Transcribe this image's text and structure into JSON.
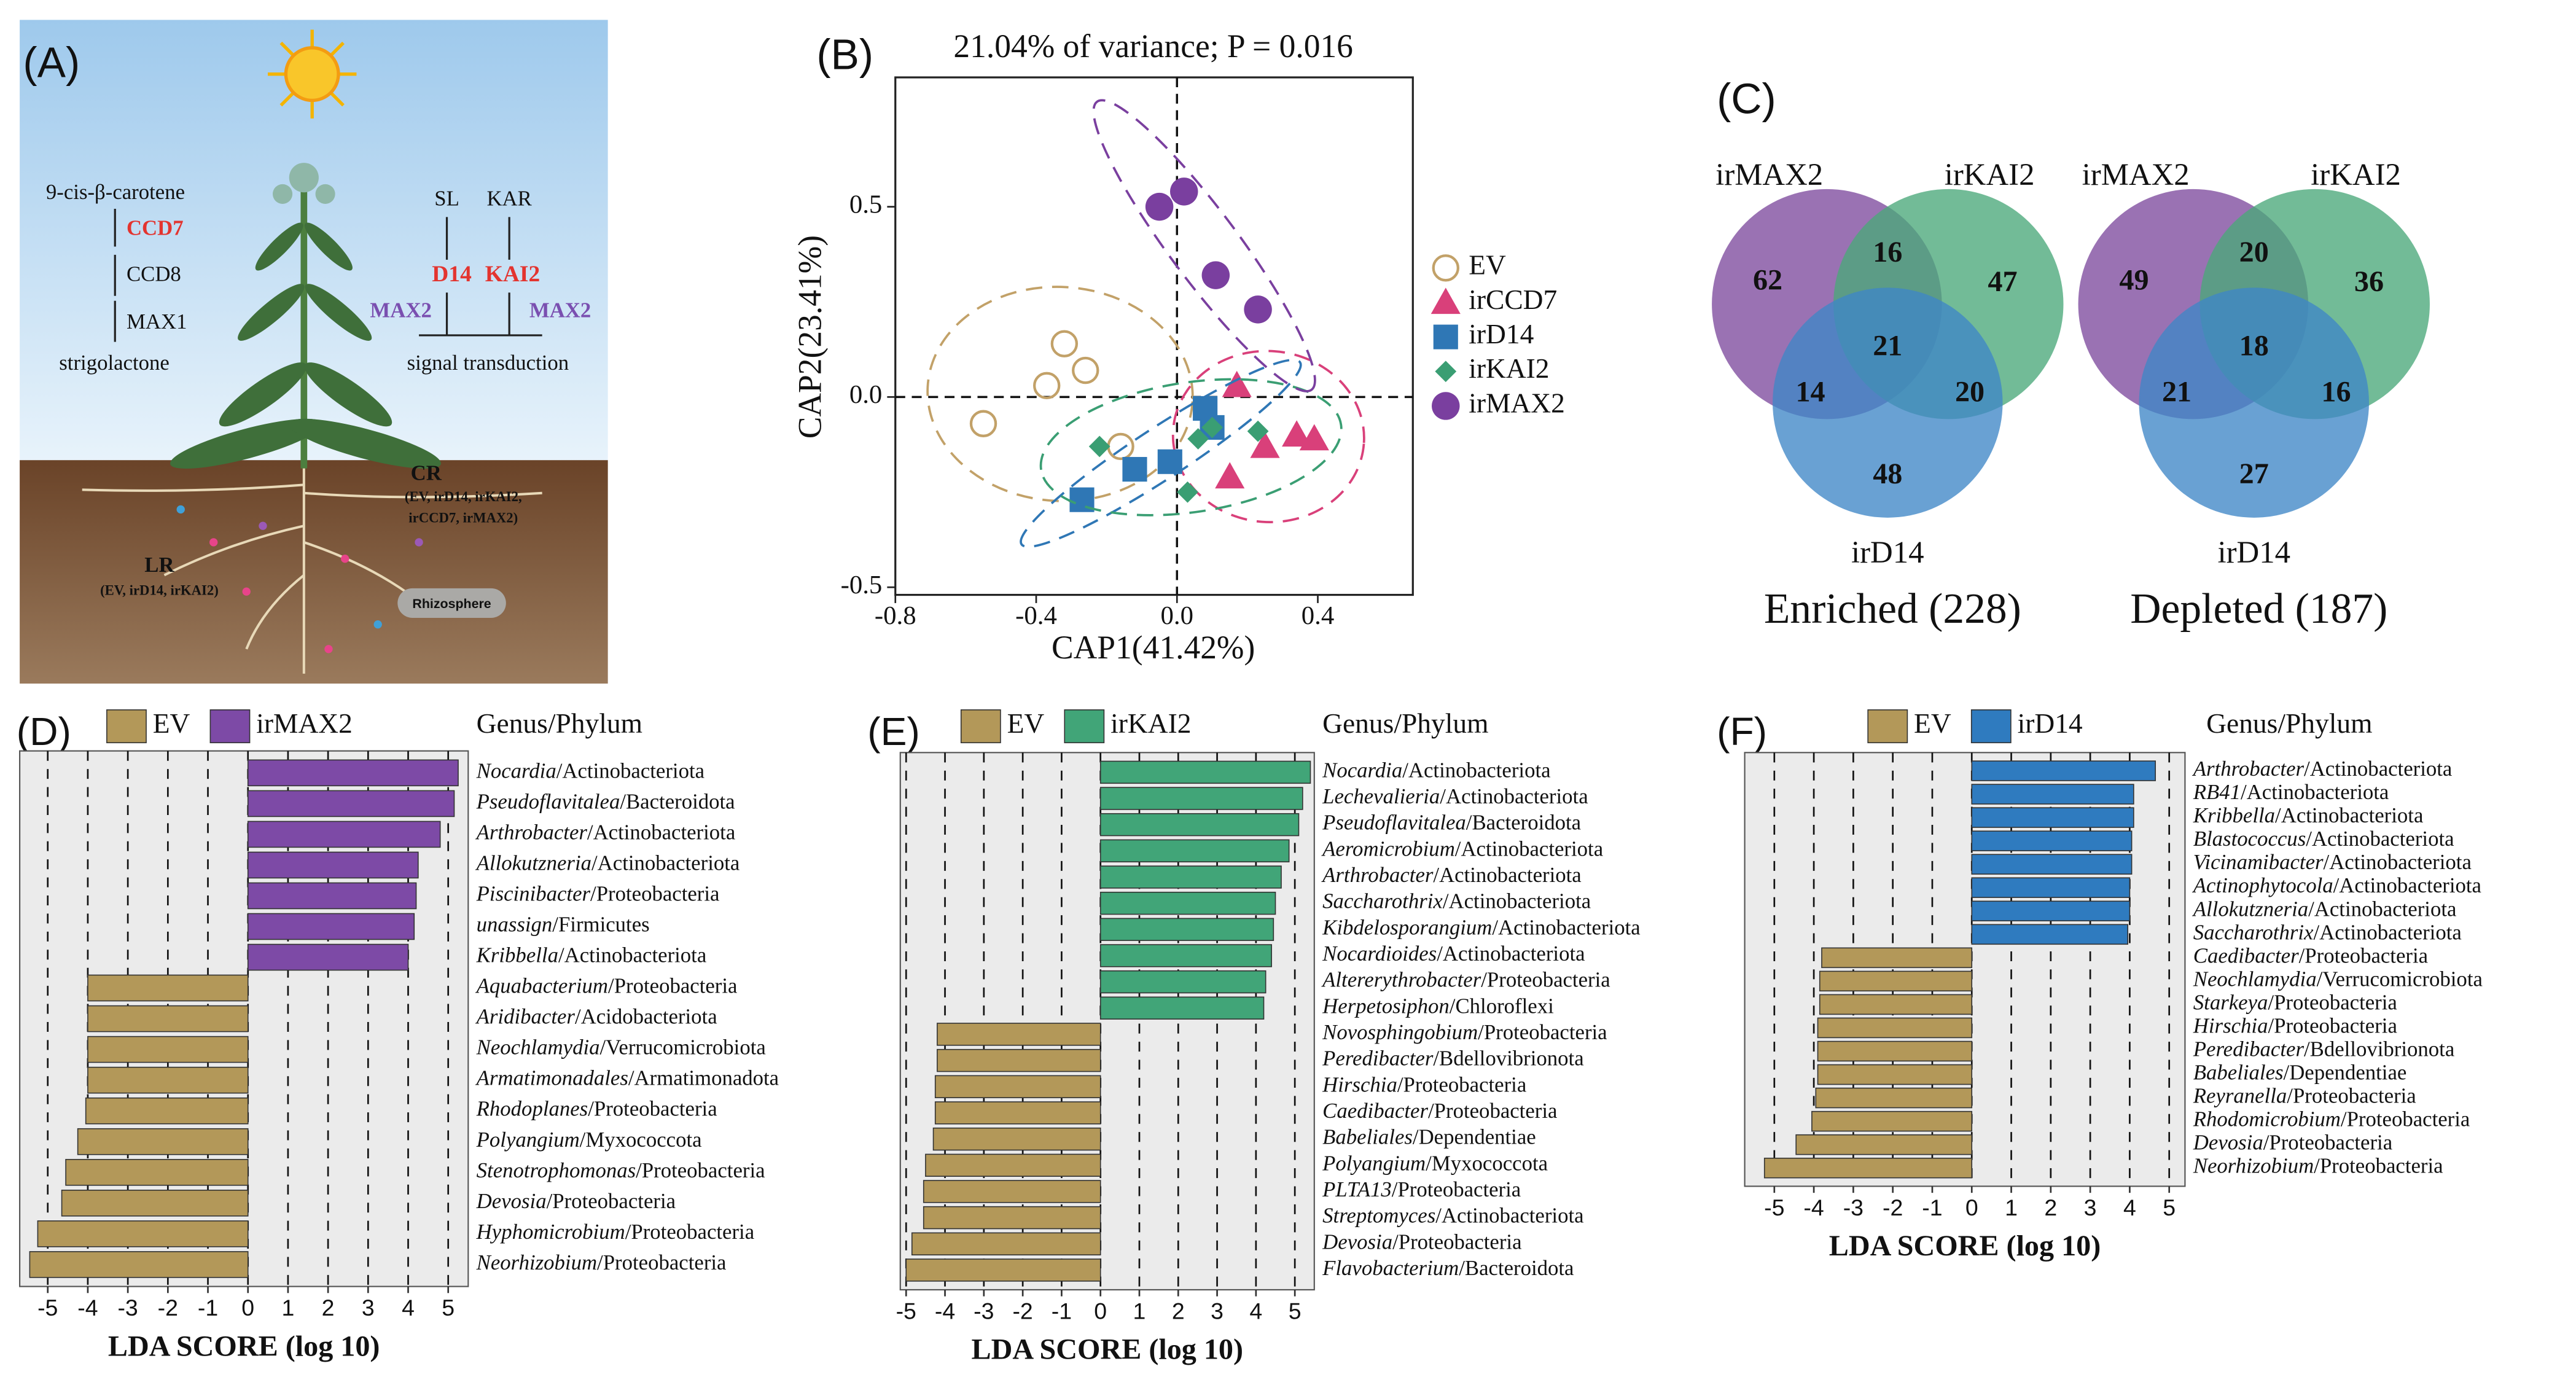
{
  "panel_a": {
    "label": "(A)",
    "pathway": [
      "9-cis-β-carotene",
      "CCD7",
      "CCD8",
      "MAX1",
      "strigolactone"
    ],
    "signals": [
      "SL",
      "KAR"
    ],
    "receptors": [
      "D14",
      "KAI2"
    ],
    "max2": [
      "MAX2",
      "MAX2"
    ],
    "signal": "signal transduction",
    "cr": "CR",
    "cr_genotypes": [
      "(EV, irD14, irKAI2,",
      "irCCD7, irMAX2)"
    ],
    "lr": "LR",
    "lr_genotypes": "(EV, irD14, irKAI2)",
    "rhizosphere": "Rhizosphere"
  },
  "chart_data": [
    {
      "type": "scatter",
      "label": "(B)",
      "title": "21.04% of variance; P = 0.016",
      "xlabel": "CAP1(41.42%)",
      "ylabel": "CAP2(23.41%)",
      "xlim": [
        -0.8,
        0.67
      ],
      "ylim": [
        -0.52,
        0.84
      ],
      "xticks": [
        -0.8,
        -0.4,
        {
          "value": 0,
          "label": "0.0"
        },
        0.4
      ],
      "yticks": [
        {
          "value": -0.5,
          "label": "-0.5"
        },
        {
          "value": 0,
          "label": "0.0"
        },
        0.5
      ],
      "series": [
        {
          "name": "EV",
          "color": "#c2a168",
          "marker": "circle-open",
          "x": [
            -0.55,
            -0.37,
            -0.32,
            -0.26,
            -0.16
          ],
          "y": [
            -0.07,
            0.03,
            0.14,
            0.07,
            -0.13
          ]
        },
        {
          "name": "irCCD7",
          "color": "#d9407a",
          "marker": "triangle",
          "x": [
            0.17,
            0.15,
            0.25,
            0.34,
            0.39
          ],
          "y": [
            0.03,
            -0.21,
            -0.13,
            -0.1,
            -0.11
          ]
        },
        {
          "name": "irD14",
          "color": "#2f77b5",
          "marker": "square",
          "x": [
            -0.27,
            -0.12,
            -0.02,
            0.08,
            0.1
          ],
          "y": [
            -0.27,
            -0.19,
            -0.17,
            -0.03,
            -0.08
          ]
        },
        {
          "name": "irKAI2",
          "color": "#3a9e73",
          "marker": "diamond",
          "x": [
            -0.22,
            0.06,
            0.1,
            0.23,
            0.03
          ],
          "y": [
            -0.13,
            -0.11,
            -0.08,
            -0.09,
            -0.25
          ]
        },
        {
          "name": "irMAX2",
          "color": "#7a3f9f",
          "marker": "circle",
          "x": [
            -0.05,
            0.02,
            0.11,
            0.23
          ],
          "y": [
            0.5,
            0.54,
            0.32,
            0.23
          ]
        }
      ]
    },
    {
      "type": "venn",
      "label": "(C)",
      "sets": [
        "irMAX2",
        "irKAI2",
        "irD14"
      ],
      "colors": [
        "#7e4a9e",
        "#4aa87a",
        "#3f86c6"
      ],
      "diagrams": [
        {
          "title": "Enriched (228)",
          "regions": [
            62,
            16,
            47,
            21,
            14,
            20,
            48
          ]
        },
        {
          "title": "Depleted (187)",
          "regions": [
            49,
            20,
            36,
            18,
            21,
            16,
            27
          ]
        }
      ]
    },
    {
      "type": "bar",
      "orientation": "horizontal",
      "label": "(D)",
      "header": "Genus/Phylum",
      "xlabel": "LDA SCORE (log 10)",
      "xlim": [
        -5.7,
        5.5
      ],
      "xticks": [
        -5,
        -4,
        -3,
        -2,
        -1,
        0,
        1,
        2,
        3,
        4,
        5
      ],
      "grid": true,
      "categories": [
        "Nocardia/Actinobacteriota",
        "Pseudoflavitalea/Bacteroidota",
        "Arthrobacter/Actinobacteriota",
        "Allokutzneria/Actinobacteriota",
        "Piscinibacter/Proteobacteria",
        "unassign/Firmicutes",
        "Kribbella/Actinobacteriota",
        "Aquabacterium/Proteobacteria",
        "Aridibacter/Acidobacteriota",
        "Neochlamydia/Verrucomicrobiota",
        "Armatimonadales/Armatimonadota",
        "Rhodoplanes/Proteobacteria",
        "Polyangium/Myxococcota",
        "Stenotrophomonas/Proteobacteria",
        "Devosia/Proteobacteria",
        "Hyphomicrobium/Proteobacteria",
        "Neorhizobium/Proteobacteria"
      ],
      "series": [
        {
          "name": "EV",
          "color": "#b39859",
          "values": [
            null,
            null,
            null,
            null,
            null,
            null,
            null,
            -4.0,
            -4.0,
            -4.0,
            -4.0,
            -4.05,
            -4.25,
            -4.55,
            -4.65,
            -5.25,
            -5.45
          ]
        },
        {
          "name": "irMAX2",
          "color": "#7d4aa6",
          "values": [
            5.25,
            5.15,
            4.8,
            4.25,
            4.2,
            4.15,
            4.0,
            null,
            null,
            null,
            null,
            null,
            null,
            null,
            null,
            null,
            null
          ]
        }
      ]
    },
    {
      "type": "bar",
      "orientation": "horizontal",
      "label": "(E)",
      "header": "Genus/Phylum",
      "xlabel": "LDA SCORE (log 10)",
      "xlim": [
        -5.15,
        5.5
      ],
      "xticks": [
        -5,
        -4,
        -3,
        -2,
        -1,
        0,
        1,
        2,
        3,
        4,
        5
      ],
      "grid": true,
      "categories": [
        "Nocardia/Actinobacteriota",
        "Lechevalieria/Actinobacteriota",
        "Pseudoflavitalea/Bacteroidota",
        "Aeromicrobium/Actinobacteriota",
        "Arthrobacter/Actinobacteriota",
        "Saccharothrix/Actinobacteriota",
        "Kibdelosporangium/Actinobacteriota",
        "Nocardioides/Actinobacteriota",
        "Altererythrobacter/Proteobacteria",
        "Herpetosiphon/Chloroflexi",
        "Novosphingobium/Proteobacteria",
        "Peredibacter/Bdellovibrionota",
        "Hirschia/Proteobacteria",
        "Caedibacter/Proteobacteria",
        "Babeliales/Dependentiae",
        "Polyangium/Myxococcota",
        "PLTA13/Proteobacteria",
        "Streptomyces/Actinobacteriota",
        "Devosia/Proteobacteria",
        "Flavobacterium/Bacteroidota"
      ],
      "series": [
        {
          "name": "EV",
          "color": "#b39859",
          "values": [
            null,
            null,
            null,
            null,
            null,
            null,
            null,
            null,
            null,
            null,
            -4.2,
            -4.2,
            -4.25,
            -4.25,
            -4.3,
            -4.5,
            -4.55,
            -4.55,
            -4.85,
            -5.0
          ]
        },
        {
          "name": "irKAI2",
          "color": "#41a578",
          "values": [
            5.4,
            5.2,
            5.1,
            4.85,
            4.65,
            4.5,
            4.45,
            4.4,
            4.25,
            4.2,
            null,
            null,
            null,
            null,
            null,
            null,
            null,
            null,
            null,
            null
          ]
        }
      ]
    },
    {
      "type": "bar",
      "orientation": "horizontal",
      "label": "(F)",
      "header": "Genus/Phylum",
      "xlabel": "LDA SCORE (log 10)",
      "xlim": [
        -5.75,
        5.4
      ],
      "xticks": [
        -5,
        -4,
        -3,
        -2,
        -1,
        0,
        1,
        2,
        3,
        4,
        5
      ],
      "grid": true,
      "categories": [
        "Arthrobacter/Actinobacteriota",
        "RB41/Actinobacteriota",
        "Kribbella/Actinobacteriota",
        "Blastococcus/Actinobacteriota",
        "Vicinamibacter/Actinobacteriota",
        "Actinophytocola/Actinobacteriota",
        "Allokutzneria/Actinobacteriota",
        "Saccharothrix/Actinobacteriota",
        "Caedibacter/Proteobacteria",
        "Neochlamydia/Verrucomicrobiota",
        "Starkeya/Proteobacteria",
        "Hirschia/Proteobacteria",
        "Peredibacter/Bdellovibrionota",
        "Babeliales/Dependentiae",
        "Reyranella/Proteobacteria",
        "Rhodomicrobium/Proteobacteria",
        "Devosia/Proteobacteria",
        "Neorhizobium/Proteobacteria"
      ],
      "series": [
        {
          "name": "EV",
          "color": "#b39859",
          "values": [
            null,
            null,
            null,
            null,
            null,
            null,
            null,
            null,
            -3.8,
            -3.85,
            -3.85,
            -3.9,
            -3.9,
            -3.9,
            -3.95,
            -4.05,
            -4.45,
            -5.25
          ]
        },
        {
          "name": "irD14",
          "color": "#2f7bbf",
          "values": [
            4.65,
            4.1,
            4.1,
            4.05,
            4.05,
            4.0,
            4.0,
            3.95,
            null,
            null,
            null,
            null,
            null,
            null,
            null,
            null,
            null,
            null
          ]
        }
      ]
    }
  ]
}
